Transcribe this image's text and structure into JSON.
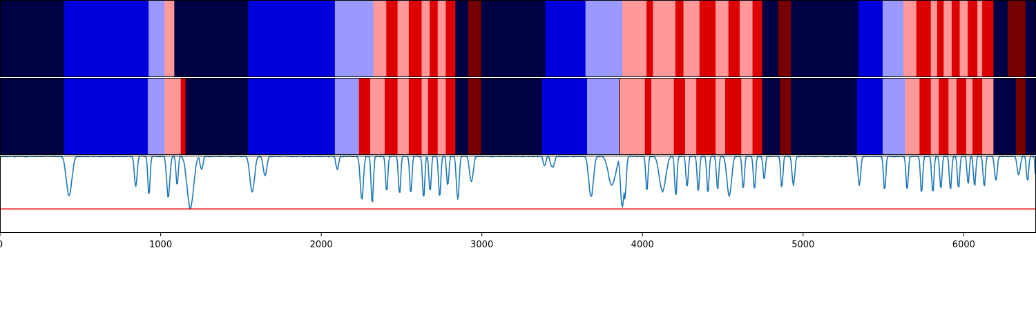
{
  "chart_data": {
    "type": "heatmap",
    "title": "",
    "xlabel": "",
    "ylabel": "",
    "xlim": [
      0,
      6450
    ],
    "x_ticks": [
      "0",
      "1000",
      "2000",
      "3000",
      "4000",
      "5000",
      "6000"
    ],
    "tick_values": [
      0,
      1000,
      2000,
      3000,
      4000,
      5000,
      6000
    ],
    "state_colors": {
      "0": "#000044",
      "1": "#0000dd",
      "2": "#9999ff",
      "3": "#ff9999",
      "4": "#dd0000",
      "5": "#770000"
    },
    "rows": [
      {
        "segments": [
          [
            0,
            400,
            0
          ],
          [
            400,
            925,
            1
          ],
          [
            925,
            1025,
            2
          ],
          [
            1025,
            1085,
            3
          ],
          [
            1085,
            1545,
            0
          ],
          [
            1545,
            2085,
            1
          ],
          [
            2085,
            2325,
            2
          ],
          [
            2325,
            2405,
            3
          ],
          [
            2405,
            2475,
            4
          ],
          [
            2475,
            2545,
            3
          ],
          [
            2545,
            2625,
            4
          ],
          [
            2625,
            2675,
            3
          ],
          [
            2675,
            2725,
            4
          ],
          [
            2725,
            2775,
            3
          ],
          [
            2775,
            2835,
            4
          ],
          [
            2835,
            2915,
            0
          ],
          [
            2915,
            2995,
            5
          ],
          [
            2995,
            3395,
            0
          ],
          [
            3395,
            3645,
            1
          ],
          [
            3645,
            3875,
            2
          ],
          [
            3875,
            4025,
            3
          ],
          [
            4025,
            4065,
            4
          ],
          [
            4065,
            4205,
            3
          ],
          [
            4205,
            4255,
            4
          ],
          [
            4255,
            4355,
            3
          ],
          [
            4355,
            4455,
            4
          ],
          [
            4455,
            4535,
            3
          ],
          [
            4535,
            4605,
            4
          ],
          [
            4605,
            4685,
            3
          ],
          [
            4685,
            4745,
            4
          ],
          [
            4745,
            4845,
            0
          ],
          [
            4845,
            4925,
            5
          ],
          [
            4925,
            5345,
            0
          ],
          [
            5345,
            5495,
            1
          ],
          [
            5495,
            5625,
            2
          ],
          [
            5625,
            5705,
            3
          ],
          [
            5705,
            5795,
            4
          ],
          [
            5795,
            5835,
            3
          ],
          [
            5835,
            5875,
            4
          ],
          [
            5875,
            5925,
            3
          ],
          [
            5925,
            5975,
            4
          ],
          [
            5975,
            6025,
            3
          ],
          [
            6025,
            6085,
            4
          ],
          [
            6085,
            6115,
            3
          ],
          [
            6115,
            6185,
            4
          ],
          [
            6185,
            6275,
            0
          ],
          [
            6275,
            6385,
            5
          ],
          [
            6385,
            6450,
            0
          ]
        ]
      },
      {
        "segments": [
          [
            0,
            400,
            0
          ],
          [
            400,
            920,
            1
          ],
          [
            920,
            1025,
            2
          ],
          [
            1025,
            1125,
            3
          ],
          [
            1125,
            1155,
            4
          ],
          [
            1155,
            1545,
            0
          ],
          [
            1545,
            2085,
            1
          ],
          [
            2085,
            2235,
            2
          ],
          [
            2235,
            2305,
            4
          ],
          [
            2305,
            2395,
            3
          ],
          [
            2395,
            2475,
            4
          ],
          [
            2475,
            2545,
            3
          ],
          [
            2545,
            2625,
            4
          ],
          [
            2625,
            2665,
            3
          ],
          [
            2665,
            2725,
            4
          ],
          [
            2725,
            2775,
            3
          ],
          [
            2775,
            2835,
            4
          ],
          [
            2835,
            2915,
            0
          ],
          [
            2915,
            2995,
            5
          ],
          [
            2995,
            3375,
            0
          ],
          [
            3375,
            3655,
            1
          ],
          [
            3655,
            3855,
            2
          ],
          [
            3855,
            3875,
            3
          ],
          [
            3875,
            4015,
            3
          ],
          [
            4015,
            4055,
            4
          ],
          [
            4055,
            4195,
            3
          ],
          [
            4195,
            4265,
            4
          ],
          [
            4265,
            4335,
            3
          ],
          [
            4335,
            4455,
            4
          ],
          [
            4455,
            4515,
            3
          ],
          [
            4515,
            4615,
            4
          ],
          [
            4615,
            4685,
            3
          ],
          [
            4685,
            4745,
            4
          ],
          [
            4745,
            4855,
            0
          ],
          [
            4855,
            4925,
            5
          ],
          [
            4925,
            5335,
            0
          ],
          [
            5335,
            5495,
            1
          ],
          [
            5495,
            5635,
            2
          ],
          [
            5635,
            5725,
            3
          ],
          [
            5725,
            5795,
            4
          ],
          [
            5795,
            5845,
            3
          ],
          [
            5845,
            5905,
            4
          ],
          [
            5905,
            5955,
            3
          ],
          [
            5955,
            6015,
            4
          ],
          [
            6015,
            6055,
            3
          ],
          [
            6055,
            6115,
            4
          ],
          [
            6115,
            6185,
            3
          ],
          [
            6185,
            6325,
            0
          ],
          [
            6325,
            6385,
            5
          ],
          [
            6385,
            6450,
            0
          ]
        ],
        "marker_line_x": 3855
      }
    ],
    "trace": {
      "color": "#1f77b4",
      "ylim": [
        0,
        1
      ],
      "threshold": 0.31,
      "threshold_color": "#ee0000",
      "baseline": 1.0,
      "dips": [
        [
          400,
          60,
          0.49
        ],
        [
          830,
          30,
          0.62
        ],
        [
          915,
          25,
          0.5
        ],
        [
          1030,
          35,
          0.48
        ],
        [
          1090,
          25,
          0.64
        ],
        [
          1150,
          70,
          0.33
        ],
        [
          1240,
          30,
          0.84
        ],
        [
          1545,
          50,
          0.53
        ],
        [
          1630,
          40,
          0.76
        ],
        [
          2085,
          30,
          0.83
        ],
        [
          2235,
          35,
          0.45
        ],
        [
          2305,
          25,
          0.38
        ],
        [
          2395,
          25,
          0.55
        ],
        [
          2475,
          25,
          0.5
        ],
        [
          2545,
          25,
          0.53
        ],
        [
          2625,
          25,
          0.47
        ],
        [
          2665,
          25,
          0.54
        ],
        [
          2725,
          25,
          0.47
        ],
        [
          2775,
          25,
          0.62
        ],
        [
          2835,
          30,
          0.44
        ],
        [
          2915,
          40,
          0.68
        ],
        [
          3375,
          30,
          0.88
        ],
        [
          3420,
          40,
          0.86
        ],
        [
          3655,
          50,
          0.48
        ],
        [
          3770,
          80,
          0.63
        ],
        [
          3855,
          40,
          0.34
        ],
        [
          3875,
          30,
          0.45
        ],
        [
          4015,
          25,
          0.56
        ],
        [
          4090,
          70,
          0.55
        ],
        [
          4195,
          25,
          0.49
        ],
        [
          4265,
          25,
          0.6
        ],
        [
          4335,
          25,
          0.55
        ],
        [
          4395,
          25,
          0.53
        ],
        [
          4455,
          25,
          0.57
        ],
        [
          4515,
          50,
          0.5
        ],
        [
          4615,
          25,
          0.58
        ],
        [
          4685,
          25,
          0.57
        ],
        [
          4745,
          25,
          0.7
        ],
        [
          4855,
          25,
          0.6
        ],
        [
          4925,
          30,
          0.64
        ],
        [
          5335,
          30,
          0.64
        ],
        [
          5495,
          25,
          0.57
        ],
        [
          5635,
          25,
          0.56
        ],
        [
          5725,
          25,
          0.53
        ],
        [
          5795,
          25,
          0.54
        ],
        [
          5845,
          25,
          0.59
        ],
        [
          5905,
          25,
          0.57
        ],
        [
          5955,
          25,
          0.59
        ],
        [
          6015,
          25,
          0.65
        ],
        [
          6055,
          25,
          0.62
        ],
        [
          6115,
          25,
          0.61
        ],
        [
          6185,
          30,
          0.7
        ],
        [
          6325,
          35,
          0.77
        ],
        [
          6385,
          25,
          0.68
        ],
        [
          6440,
          15,
          0.75
        ]
      ],
      "samples": 1290
    }
  }
}
